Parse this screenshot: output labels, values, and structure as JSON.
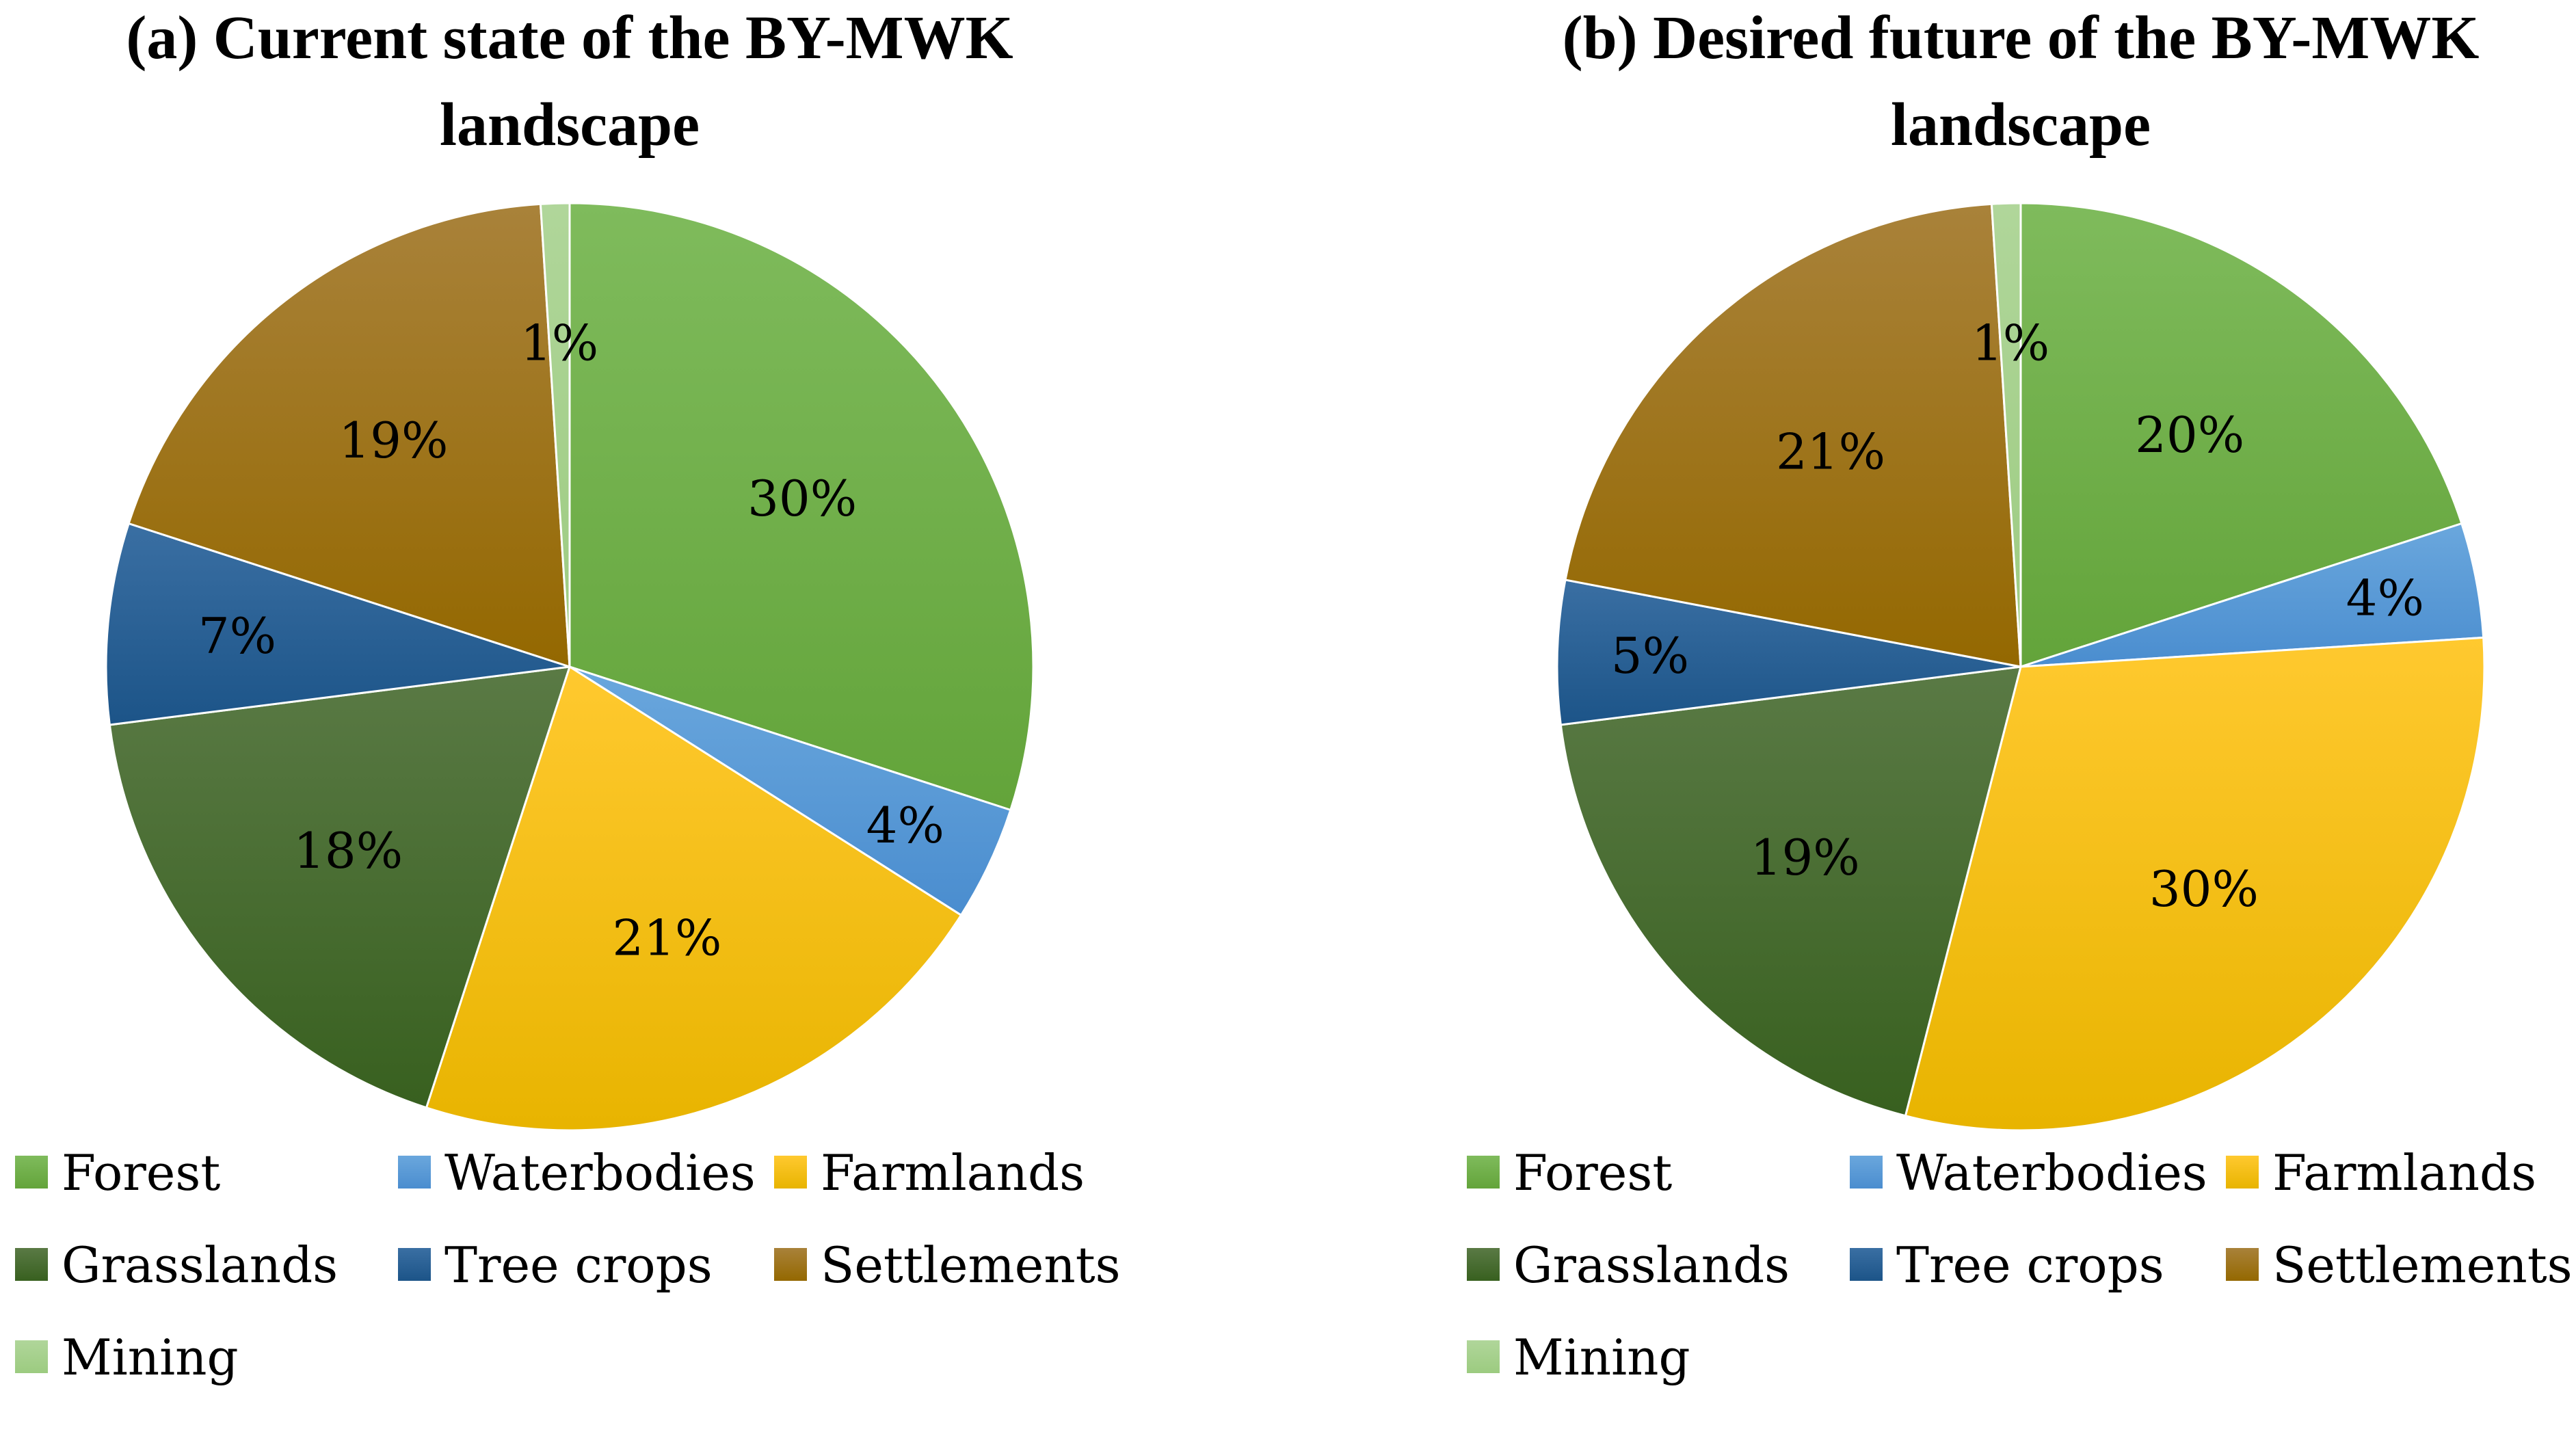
{
  "chart_data": [
    {
      "type": "pie",
      "title_lines": [
        "(a) Current state of the BY-MWK",
        "landscape"
      ],
      "categories": [
        "Forest",
        "Waterbodies",
        "Farmlands",
        "Grasslands",
        "Tree crops",
        "Settlements",
        "Mining"
      ],
      "values": [
        30,
        4,
        21,
        18,
        7,
        19,
        1
      ],
      "labels": [
        "30%",
        "4%",
        "21%",
        "18%",
        "7%",
        "19%",
        "1%"
      ],
      "colors": [
        "#70ad47",
        "#5b9bd5",
        "#ffc000",
        "#43682b",
        "#255e91",
        "#9e7000",
        "#a9d18e"
      ],
      "legend_position": "bottom",
      "start_angle": "12 o'clock, clockwise"
    },
    {
      "type": "pie",
      "title_lines": [
        "(b) Desired future of the BY-MWK",
        "landscape"
      ],
      "categories": [
        "Forest",
        "Waterbodies",
        "Farmlands",
        "Grasslands",
        "Tree crops",
        "Settlements",
        "Mining"
      ],
      "values": [
        20,
        4,
        30,
        19,
        5,
        21,
        1
      ],
      "labels": [
        "20%",
        "4%",
        "30%",
        "19%",
        "5%",
        "21%",
        "1%"
      ],
      "colors": [
        "#70ad47",
        "#5b9bd5",
        "#ffc000",
        "#43682b",
        "#255e91",
        "#9e7000",
        "#a9d18e"
      ],
      "legend_position": "bottom",
      "start_angle": "12 o'clock, clockwise"
    }
  ]
}
